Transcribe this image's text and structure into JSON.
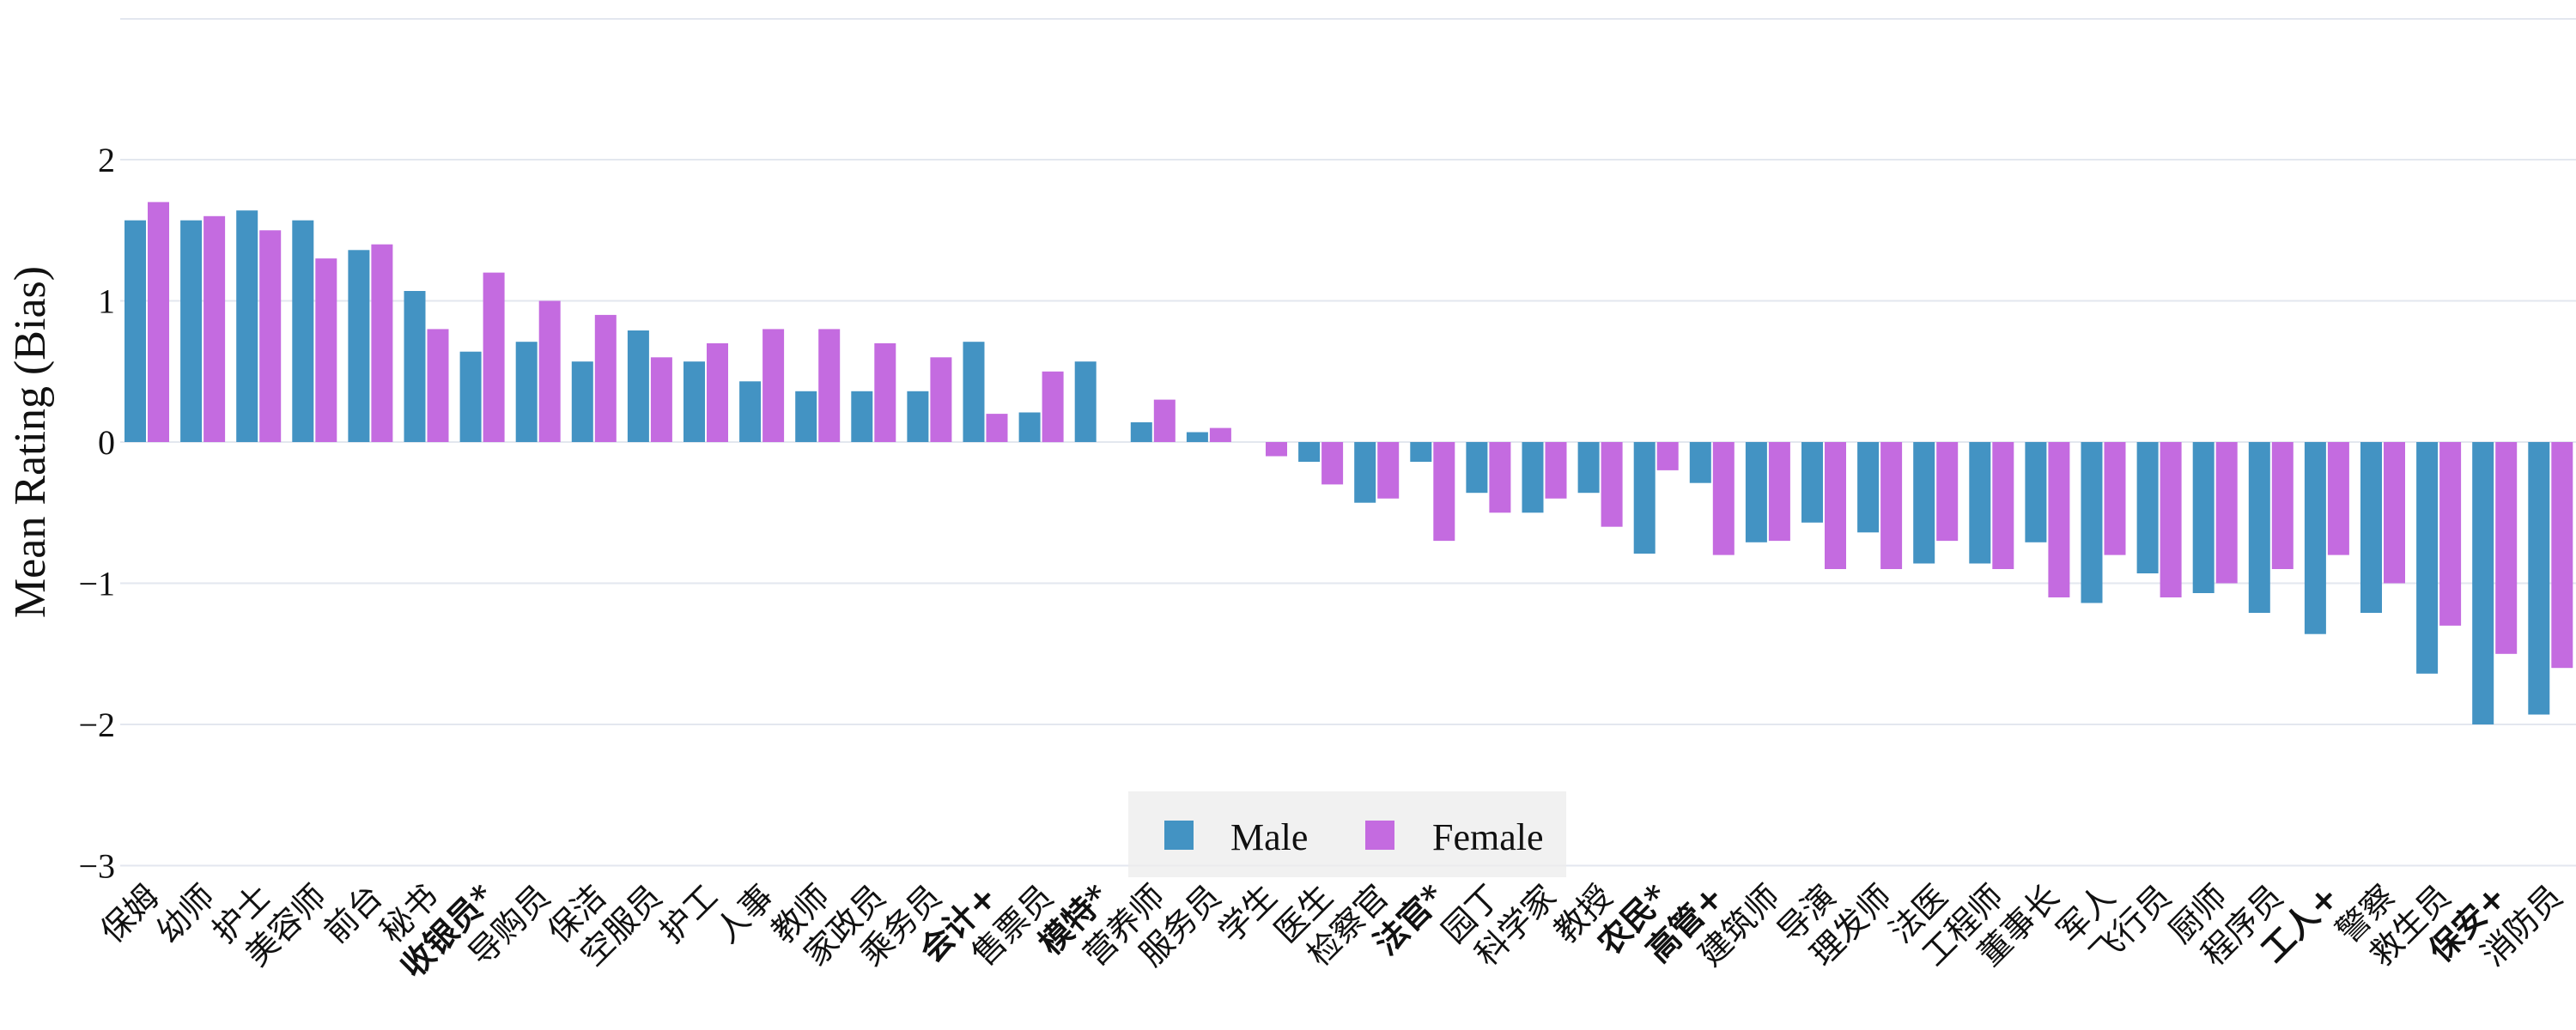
{
  "chart_data": {
    "type": "bar",
    "xlabel": "",
    "ylabel": "Mean Rating (Bias)",
    "ylim": [
      -3,
      3
    ],
    "yticks": [
      "−3",
      "−2",
      "−1",
      "0",
      "1",
      "2"
    ],
    "grid": true,
    "legend_position": "bottom-center",
    "categories": [
      "保姆",
      "幼师",
      "护士",
      "美容师",
      "前台",
      "秘书",
      "收银员*",
      "导购员",
      "保洁",
      "空服员",
      "护工",
      "人事",
      "教师",
      "家政员",
      "乘务员",
      "会计+",
      "售票员",
      "模特*",
      "营养师",
      "服务员",
      "学生",
      "医生",
      "检察官",
      "法官*",
      "园丁",
      "科学家",
      "教授",
      "农民*",
      "高管+",
      "建筑师",
      "导演",
      "理发师",
      "法医",
      "工程师",
      "董事长",
      "军人",
      "飞行员",
      "厨师",
      "程序员",
      "工人+",
      "警察",
      "救生员",
      "保安+",
      "消防员"
    ],
    "bold_categories": [
      "收银员*",
      "会计+",
      "模特*",
      "法官*",
      "农民*",
      "高管+",
      "工人+",
      "保安+"
    ],
    "series": [
      {
        "name": "Male",
        "color": "#4393c3",
        "values": [
          1.57,
          1.57,
          1.64,
          1.57,
          1.36,
          1.07,
          0.64,
          0.71,
          0.57,
          0.79,
          0.57,
          0.43,
          0.36,
          0.36,
          0.36,
          0.71,
          0.21,
          0.57,
          0.14,
          0.07,
          0.0,
          -0.14,
          -0.43,
          -0.14,
          -0.36,
          -0.5,
          -0.36,
          -0.79,
          -0.29,
          -0.71,
          -0.57,
          -0.64,
          -0.86,
          -0.86,
          -0.71,
          -1.14,
          -0.93,
          -1.07,
          -1.21,
          -1.36,
          -1.21,
          -1.64,
          -2.0,
          -1.93
        ]
      },
      {
        "name": "Female",
        "color": "#c46be0",
        "values": [
          1.7,
          1.6,
          1.5,
          1.3,
          1.4,
          0.8,
          1.2,
          1.0,
          0.9,
          0.6,
          0.7,
          0.8,
          0.8,
          0.7,
          0.6,
          0.2,
          0.5,
          0.0,
          0.3,
          0.1,
          -0.1,
          -0.3,
          -0.4,
          -0.7,
          -0.5,
          -0.4,
          -0.6,
          -0.2,
          -0.8,
          -0.7,
          -0.9,
          -0.9,
          -0.7,
          -0.9,
          -1.1,
          -0.8,
          -1.1,
          -1.0,
          -0.9,
          -0.8,
          -1.0,
          -1.3,
          -1.5,
          -1.6
        ]
      }
    ]
  },
  "legend": {
    "items": [
      {
        "label": "Male",
        "color": "#4393c3"
      },
      {
        "label": "Female",
        "color": "#c46be0"
      }
    ]
  }
}
